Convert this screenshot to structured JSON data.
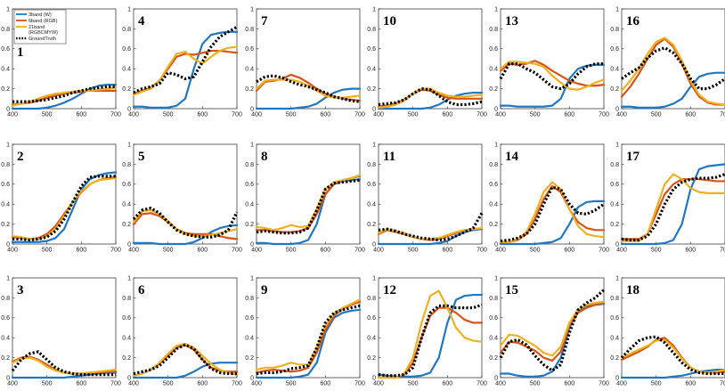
{
  "figure": {
    "description_title": "Spectral reflectance estimation panels 1-18"
  },
  "colors": {
    "3band": "#1f77c4",
    "6band": "#d95319",
    "21band": "#edb120",
    "groundtruth": "#000000"
  },
  "legend": {
    "entries": [
      {
        "key": "3band",
        "label": "3band (W)"
      },
      {
        "key": "6band",
        "label": "6band (RGB)"
      },
      {
        "key": "21band",
        "label": "21band",
        "label2": "(RGBCMYW)"
      },
      {
        "key": "groundtruth",
        "label": "GroundTruth"
      }
    ]
  },
  "chart_data": {
    "type": "line",
    "xlim": [
      400,
      700
    ],
    "ylim": [
      0,
      1
    ],
    "xticks": [
      "400",
      "500",
      "600",
      "700"
    ],
    "yticks": [
      "0",
      "0.2",
      "0.4",
      "0.6",
      "0.8",
      "1"
    ],
    "x": [
      400,
      425,
      450,
      475,
      500,
      525,
      550,
      575,
      600,
      625,
      650,
      675,
      700
    ],
    "series_names": [
      "3band (W)",
      "6band (RGB)",
      "21band (RGBCMYW)",
      "GroundTruth"
    ],
    "panels": [
      {
        "label": "1",
        "3band": [
          0.0,
          0.0,
          0.0,
          0.0,
          0.01,
          0.03,
          0.06,
          0.1,
          0.15,
          0.2,
          0.23,
          0.24,
          0.24
        ],
        "6band": [
          0.04,
          0.05,
          0.06,
          0.08,
          0.11,
          0.13,
          0.15,
          0.16,
          0.17,
          0.18,
          0.18,
          0.18,
          0.18
        ],
        "21band": [
          0.03,
          0.05,
          0.07,
          0.1,
          0.13,
          0.15,
          0.16,
          0.17,
          0.18,
          0.18,
          0.19,
          0.2,
          0.21
        ],
        "gt": [
          0.07,
          0.07,
          0.07,
          0.08,
          0.09,
          0.11,
          0.13,
          0.16,
          0.18,
          0.2,
          0.21,
          0.22,
          0.22
        ]
      },
      {
        "label": "2",
        "3band": [
          0.02,
          0.02,
          0.02,
          0.02,
          0.03,
          0.06,
          0.15,
          0.35,
          0.55,
          0.65,
          0.69,
          0.71,
          0.72
        ],
        "6band": [
          0.07,
          0.06,
          0.05,
          0.06,
          0.1,
          0.18,
          0.3,
          0.42,
          0.52,
          0.6,
          0.64,
          0.66,
          0.67
        ],
        "21band": [
          0.08,
          0.07,
          0.05,
          0.05,
          0.08,
          0.15,
          0.28,
          0.42,
          0.53,
          0.6,
          0.64,
          0.65,
          0.66
        ],
        "gt": [
          0.05,
          0.05,
          0.04,
          0.05,
          0.07,
          0.13,
          0.25,
          0.42,
          0.58,
          0.67,
          0.68,
          0.68,
          0.68
        ]
      },
      {
        "label": "3",
        "3band": [
          0.0,
          0.0,
          0.0,
          0.0,
          0.0,
          0.0,
          0.0,
          0.01,
          0.02,
          0.03,
          0.04,
          0.05,
          0.05
        ],
        "6band": [
          0.16,
          0.2,
          0.21,
          0.18,
          0.13,
          0.08,
          0.05,
          0.04,
          0.04,
          0.05,
          0.05,
          0.06,
          0.06
        ],
        "21band": [
          0.15,
          0.19,
          0.2,
          0.17,
          0.11,
          0.07,
          0.05,
          0.04,
          0.04,
          0.05,
          0.06,
          0.07,
          0.08
        ],
        "gt": [
          0.07,
          0.18,
          0.24,
          0.26,
          0.18,
          0.1,
          0.06,
          0.04,
          0.03,
          0.03,
          0.03,
          0.03,
          0.03
        ]
      },
      {
        "label": "4",
        "3band": [
          0.02,
          0.02,
          0.01,
          0.01,
          0.01,
          0.03,
          0.1,
          0.4,
          0.65,
          0.74,
          0.76,
          0.77,
          0.77
        ],
        "6band": [
          0.15,
          0.18,
          0.21,
          0.28,
          0.4,
          0.52,
          0.55,
          0.54,
          0.56,
          0.58,
          0.58,
          0.57,
          0.56
        ],
        "21band": [
          0.14,
          0.17,
          0.2,
          0.28,
          0.42,
          0.55,
          0.57,
          0.5,
          0.45,
          0.52,
          0.58,
          0.61,
          0.62
        ],
        "gt": [
          0.16,
          0.2,
          0.22,
          0.25,
          0.36,
          0.34,
          0.3,
          0.32,
          0.47,
          0.62,
          0.72,
          0.77,
          0.82
        ]
      },
      {
        "label": "5",
        "3band": [
          0.01,
          0.01,
          0.01,
          0.0,
          0.0,
          0.0,
          0.0,
          0.02,
          0.06,
          0.12,
          0.16,
          0.18,
          0.19
        ],
        "6band": [
          0.2,
          0.3,
          0.31,
          0.28,
          0.22,
          0.15,
          0.11,
          0.1,
          0.1,
          0.1,
          0.08,
          0.06,
          0.05
        ],
        "21band": [
          0.22,
          0.33,
          0.34,
          0.3,
          0.23,
          0.15,
          0.1,
          0.08,
          0.08,
          0.09,
          0.11,
          0.13,
          0.15
        ],
        "gt": [
          0.25,
          0.34,
          0.36,
          0.31,
          0.22,
          0.14,
          0.1,
          0.08,
          0.07,
          0.07,
          0.09,
          0.14,
          0.32
        ]
      },
      {
        "label": "6",
        "3band": [
          0.0,
          0.0,
          0.0,
          0.0,
          0.0,
          0.0,
          0.02,
          0.06,
          0.11,
          0.14,
          0.15,
          0.15,
          0.15
        ],
        "6band": [
          0.02,
          0.04,
          0.08,
          0.14,
          0.22,
          0.3,
          0.33,
          0.28,
          0.18,
          0.1,
          0.07,
          0.06,
          0.06
        ],
        "21band": [
          0.02,
          0.04,
          0.08,
          0.15,
          0.24,
          0.32,
          0.34,
          0.3,
          0.22,
          0.14,
          0.08,
          0.05,
          0.03
        ],
        "gt": [
          0.04,
          0.06,
          0.08,
          0.12,
          0.2,
          0.29,
          0.33,
          0.29,
          0.18,
          0.09,
          0.05,
          0.04,
          0.04
        ]
      },
      {
        "label": "7",
        "3band": [
          0.0,
          0.0,
          0.0,
          0.0,
          0.0,
          0.01,
          0.02,
          0.05,
          0.11,
          0.16,
          0.19,
          0.2,
          0.2
        ],
        "6band": [
          0.18,
          0.27,
          0.28,
          0.3,
          0.34,
          0.31,
          0.26,
          0.2,
          0.15,
          0.12,
          0.1,
          0.09,
          0.08
        ],
        "21band": [
          0.2,
          0.28,
          0.29,
          0.29,
          0.29,
          0.27,
          0.23,
          0.18,
          0.13,
          0.11,
          0.11,
          0.12,
          0.13
        ],
        "gt": [
          0.27,
          0.32,
          0.33,
          0.31,
          0.27,
          0.24,
          0.22,
          0.19,
          0.16,
          0.12,
          0.1,
          0.08,
          0.07
        ]
      },
      {
        "label": "8",
        "3band": [
          0.01,
          0.01,
          0.0,
          0.0,
          0.0,
          0.01,
          0.04,
          0.2,
          0.5,
          0.6,
          0.63,
          0.64,
          0.65
        ],
        "6band": [
          0.14,
          0.14,
          0.13,
          0.12,
          0.12,
          0.13,
          0.16,
          0.3,
          0.5,
          0.6,
          0.64,
          0.66,
          0.68
        ],
        "21band": [
          0.17,
          0.16,
          0.14,
          0.16,
          0.19,
          0.17,
          0.18,
          0.35,
          0.55,
          0.62,
          0.64,
          0.66,
          0.69
        ],
        "gt": [
          0.12,
          0.13,
          0.12,
          0.11,
          0.11,
          0.12,
          0.16,
          0.34,
          0.55,
          0.61,
          0.62,
          0.63,
          0.64
        ]
      },
      {
        "label": "9",
        "3band": [
          0.0,
          0.0,
          0.0,
          0.0,
          0.0,
          0.01,
          0.03,
          0.15,
          0.45,
          0.6,
          0.65,
          0.67,
          0.68
        ],
        "6band": [
          0.05,
          0.07,
          0.08,
          0.07,
          0.06,
          0.07,
          0.1,
          0.25,
          0.48,
          0.62,
          0.69,
          0.73,
          0.76
        ],
        "21band": [
          0.08,
          0.1,
          0.1,
          0.12,
          0.15,
          0.13,
          0.13,
          0.3,
          0.52,
          0.64,
          0.7,
          0.74,
          0.78
        ],
        "gt": [
          0.04,
          0.05,
          0.05,
          0.06,
          0.09,
          0.1,
          0.12,
          0.3,
          0.55,
          0.65,
          0.68,
          0.7,
          0.72
        ]
      },
      {
        "label": "10",
        "3band": [
          0.0,
          0.0,
          0.0,
          0.0,
          0.0,
          0.0,
          0.01,
          0.04,
          0.09,
          0.13,
          0.15,
          0.16,
          0.16
        ],
        "6band": [
          0.02,
          0.03,
          0.05,
          0.09,
          0.15,
          0.19,
          0.18,
          0.14,
          0.11,
          0.1,
          0.1,
          0.1,
          0.1
        ],
        "21band": [
          0.01,
          0.02,
          0.04,
          0.08,
          0.15,
          0.2,
          0.2,
          0.16,
          0.13,
          0.12,
          0.12,
          0.13,
          0.14
        ],
        "gt": [
          0.04,
          0.05,
          0.06,
          0.09,
          0.15,
          0.2,
          0.19,
          0.13,
          0.07,
          0.04,
          0.04,
          0.05,
          0.07
        ]
      },
      {
        "label": "11",
        "3band": [
          0.0,
          0.0,
          0.0,
          0.0,
          0.0,
          0.0,
          0.0,
          0.01,
          0.03,
          0.08,
          0.12,
          0.14,
          0.15
        ],
        "6band": [
          0.1,
          0.14,
          0.12,
          0.1,
          0.07,
          0.05,
          0.04,
          0.05,
          0.08,
          0.11,
          0.14,
          0.15,
          0.15
        ],
        "21band": [
          0.11,
          0.15,
          0.13,
          0.11,
          0.07,
          0.05,
          0.05,
          0.06,
          0.09,
          0.12,
          0.14,
          0.15,
          0.16
        ],
        "gt": [
          0.14,
          0.15,
          0.13,
          0.1,
          0.08,
          0.06,
          0.05,
          0.04,
          0.05,
          0.08,
          0.12,
          0.16,
          0.31
        ]
      },
      {
        "label": "12",
        "3band": [
          0.03,
          0.02,
          0.01,
          0.01,
          0.01,
          0.02,
          0.05,
          0.2,
          0.55,
          0.78,
          0.82,
          0.83,
          0.83
        ],
        "6band": [
          0.0,
          0.0,
          0.0,
          0.03,
          0.15,
          0.4,
          0.62,
          0.7,
          0.7,
          0.65,
          0.58,
          0.55,
          0.55
        ],
        "21band": [
          0.0,
          0.0,
          0.0,
          0.04,
          0.2,
          0.55,
          0.82,
          0.87,
          0.7,
          0.5,
          0.4,
          0.37,
          0.36
        ],
        "gt": [
          0.03,
          0.02,
          0.02,
          0.03,
          0.1,
          0.4,
          0.65,
          0.72,
          0.72,
          0.7,
          0.7,
          0.7,
          0.73
        ]
      },
      {
        "label": "13",
        "3band": [
          0.03,
          0.03,
          0.02,
          0.02,
          0.02,
          0.02,
          0.03,
          0.1,
          0.3,
          0.4,
          0.43,
          0.44,
          0.44
        ],
        "6band": [
          0.38,
          0.45,
          0.44,
          0.45,
          0.48,
          0.44,
          0.38,
          0.33,
          0.28,
          0.25,
          0.23,
          0.23,
          0.24
        ],
        "21band": [
          0.4,
          0.47,
          0.47,
          0.46,
          0.45,
          0.42,
          0.33,
          0.26,
          0.2,
          0.19,
          0.22,
          0.26,
          0.29
        ],
        "gt": [
          0.3,
          0.45,
          0.45,
          0.4,
          0.36,
          0.29,
          0.22,
          0.2,
          0.25,
          0.35,
          0.42,
          0.45,
          0.45
        ]
      },
      {
        "label": "14",
        "3band": [
          0.0,
          0.0,
          0.0,
          0.0,
          0.0,
          0.01,
          0.02,
          0.06,
          0.2,
          0.37,
          0.42,
          0.43,
          0.43
        ],
        "6band": [
          0.02,
          0.02,
          0.04,
          0.1,
          0.25,
          0.45,
          0.58,
          0.52,
          0.35,
          0.22,
          0.16,
          0.14,
          0.14
        ],
        "21band": [
          0.02,
          0.02,
          0.05,
          0.12,
          0.3,
          0.52,
          0.62,
          0.55,
          0.35,
          0.18,
          0.1,
          0.08,
          0.07
        ],
        "gt": [
          0.03,
          0.04,
          0.06,
          0.1,
          0.2,
          0.4,
          0.57,
          0.55,
          0.4,
          0.31,
          0.3,
          0.34,
          0.4
        ]
      },
      {
        "label": "15",
        "3band": [
          0.04,
          0.04,
          0.02,
          0.01,
          0.01,
          0.02,
          0.06,
          0.2,
          0.5,
          0.67,
          0.72,
          0.73,
          0.74
        ],
        "6band": [
          0.25,
          0.36,
          0.35,
          0.31,
          0.27,
          0.2,
          0.17,
          0.26,
          0.52,
          0.65,
          0.7,
          0.73,
          0.75
        ],
        "21band": [
          0.32,
          0.43,
          0.42,
          0.37,
          0.32,
          0.25,
          0.22,
          0.31,
          0.55,
          0.68,
          0.73,
          0.75,
          0.76
        ],
        "gt": [
          0.2,
          0.36,
          0.38,
          0.33,
          0.22,
          0.13,
          0.07,
          0.13,
          0.45,
          0.68,
          0.75,
          0.8,
          0.88
        ]
      },
      {
        "label": "16",
        "3band": [
          0.02,
          0.02,
          0.01,
          0.01,
          0.01,
          0.02,
          0.05,
          0.1,
          0.22,
          0.32,
          0.35,
          0.36,
          0.36
        ],
        "6band": [
          0.12,
          0.22,
          0.35,
          0.5,
          0.64,
          0.7,
          0.62,
          0.45,
          0.25,
          0.12,
          0.06,
          0.04,
          0.04
        ],
        "21band": [
          0.18,
          0.28,
          0.4,
          0.55,
          0.67,
          0.71,
          0.64,
          0.48,
          0.28,
          0.14,
          0.07,
          0.05,
          0.04
        ],
        "gt": [
          0.3,
          0.36,
          0.41,
          0.51,
          0.58,
          0.61,
          0.56,
          0.45,
          0.3,
          0.2,
          0.2,
          0.24,
          0.3
        ]
      },
      {
        "label": "17",
        "3band": [
          0.0,
          0.0,
          0.0,
          0.0,
          0.0,
          0.01,
          0.04,
          0.2,
          0.55,
          0.75,
          0.78,
          0.79,
          0.8
        ],
        "6band": [
          0.05,
          0.05,
          0.05,
          0.1,
          0.3,
          0.5,
          0.6,
          0.65,
          0.65,
          0.65,
          0.64,
          0.63,
          0.63
        ],
        "21band": [
          0.03,
          0.03,
          0.03,
          0.1,
          0.35,
          0.6,
          0.7,
          0.65,
          0.56,
          0.52,
          0.51,
          0.51,
          0.51
        ],
        "gt": [
          0.05,
          0.04,
          0.04,
          0.08,
          0.2,
          0.4,
          0.55,
          0.62,
          0.65,
          0.66,
          0.66,
          0.67,
          0.7
        ]
      },
      {
        "label": "18",
        "3band": [
          0.0,
          0.0,
          0.0,
          0.0,
          0.0,
          0.0,
          0.01,
          0.02,
          0.04,
          0.06,
          0.07,
          0.08,
          0.08
        ],
        "6band": [
          0.18,
          0.22,
          0.26,
          0.31,
          0.38,
          0.4,
          0.32,
          0.2,
          0.1,
          0.06,
          0.05,
          0.05,
          0.06
        ],
        "21band": [
          0.2,
          0.24,
          0.28,
          0.32,
          0.37,
          0.38,
          0.3,
          0.19,
          0.1,
          0.06,
          0.05,
          0.06,
          0.08
        ],
        "gt": [
          0.2,
          0.29,
          0.37,
          0.4,
          0.41,
          0.35,
          0.25,
          0.15,
          0.08,
          0.05,
          0.04,
          0.04,
          0.04
        ]
      }
    ]
  }
}
